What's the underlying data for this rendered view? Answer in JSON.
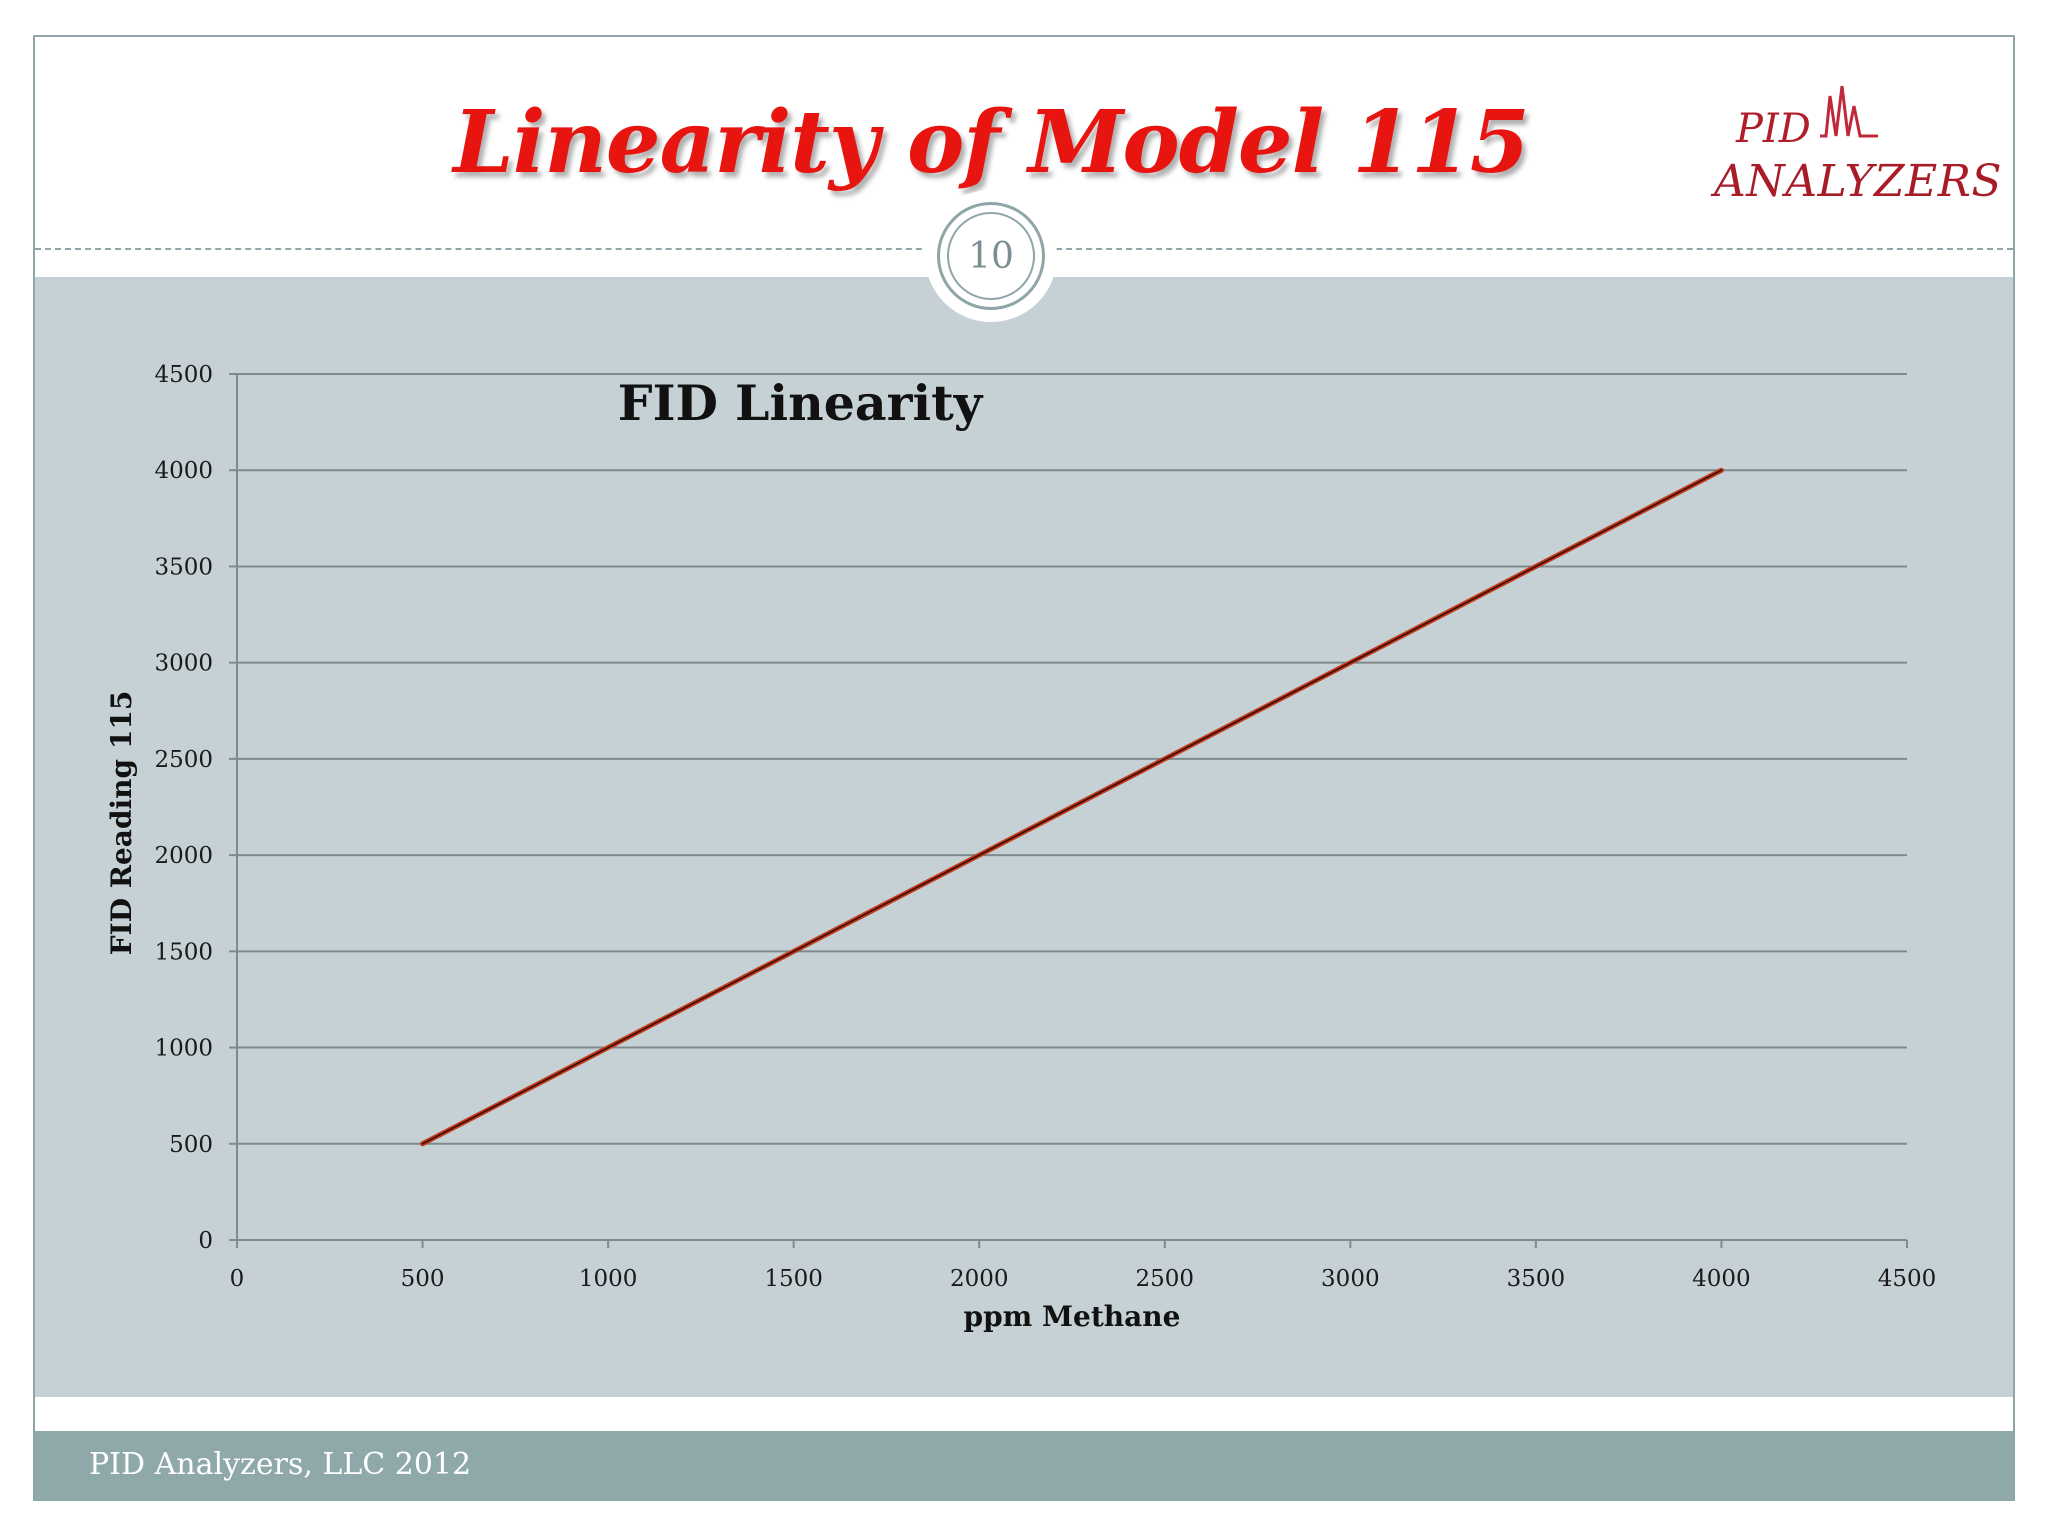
{
  "slide": {
    "title": "Linearity of Model 115",
    "page_number": "10",
    "footer": "PID Analyzers, LLC  2012",
    "logo": {
      "line1": "PID",
      "line2": "ANALYZERS"
    }
  },
  "colors": {
    "title": "#e8140f",
    "accent": "#8fa5a8",
    "content_bg": "#c6d1d6",
    "line": "#a3200f"
  },
  "chart_data": {
    "type": "line",
    "title": "FID Linearity",
    "xlabel": "ppm Methane",
    "ylabel": "FID Reading 115",
    "xlim": [
      0,
      4500
    ],
    "ylim": [
      0,
      4500
    ],
    "xticks": [
      0,
      500,
      1000,
      1500,
      2000,
      2500,
      3000,
      3500,
      4000,
      4500
    ],
    "yticks": [
      0,
      500,
      1000,
      1500,
      2000,
      2500,
      3000,
      3500,
      4000,
      4500
    ],
    "grid": true,
    "series": [
      {
        "x": [
          500,
          4000
        ],
        "y": [
          500,
          4000
        ]
      }
    ]
  }
}
